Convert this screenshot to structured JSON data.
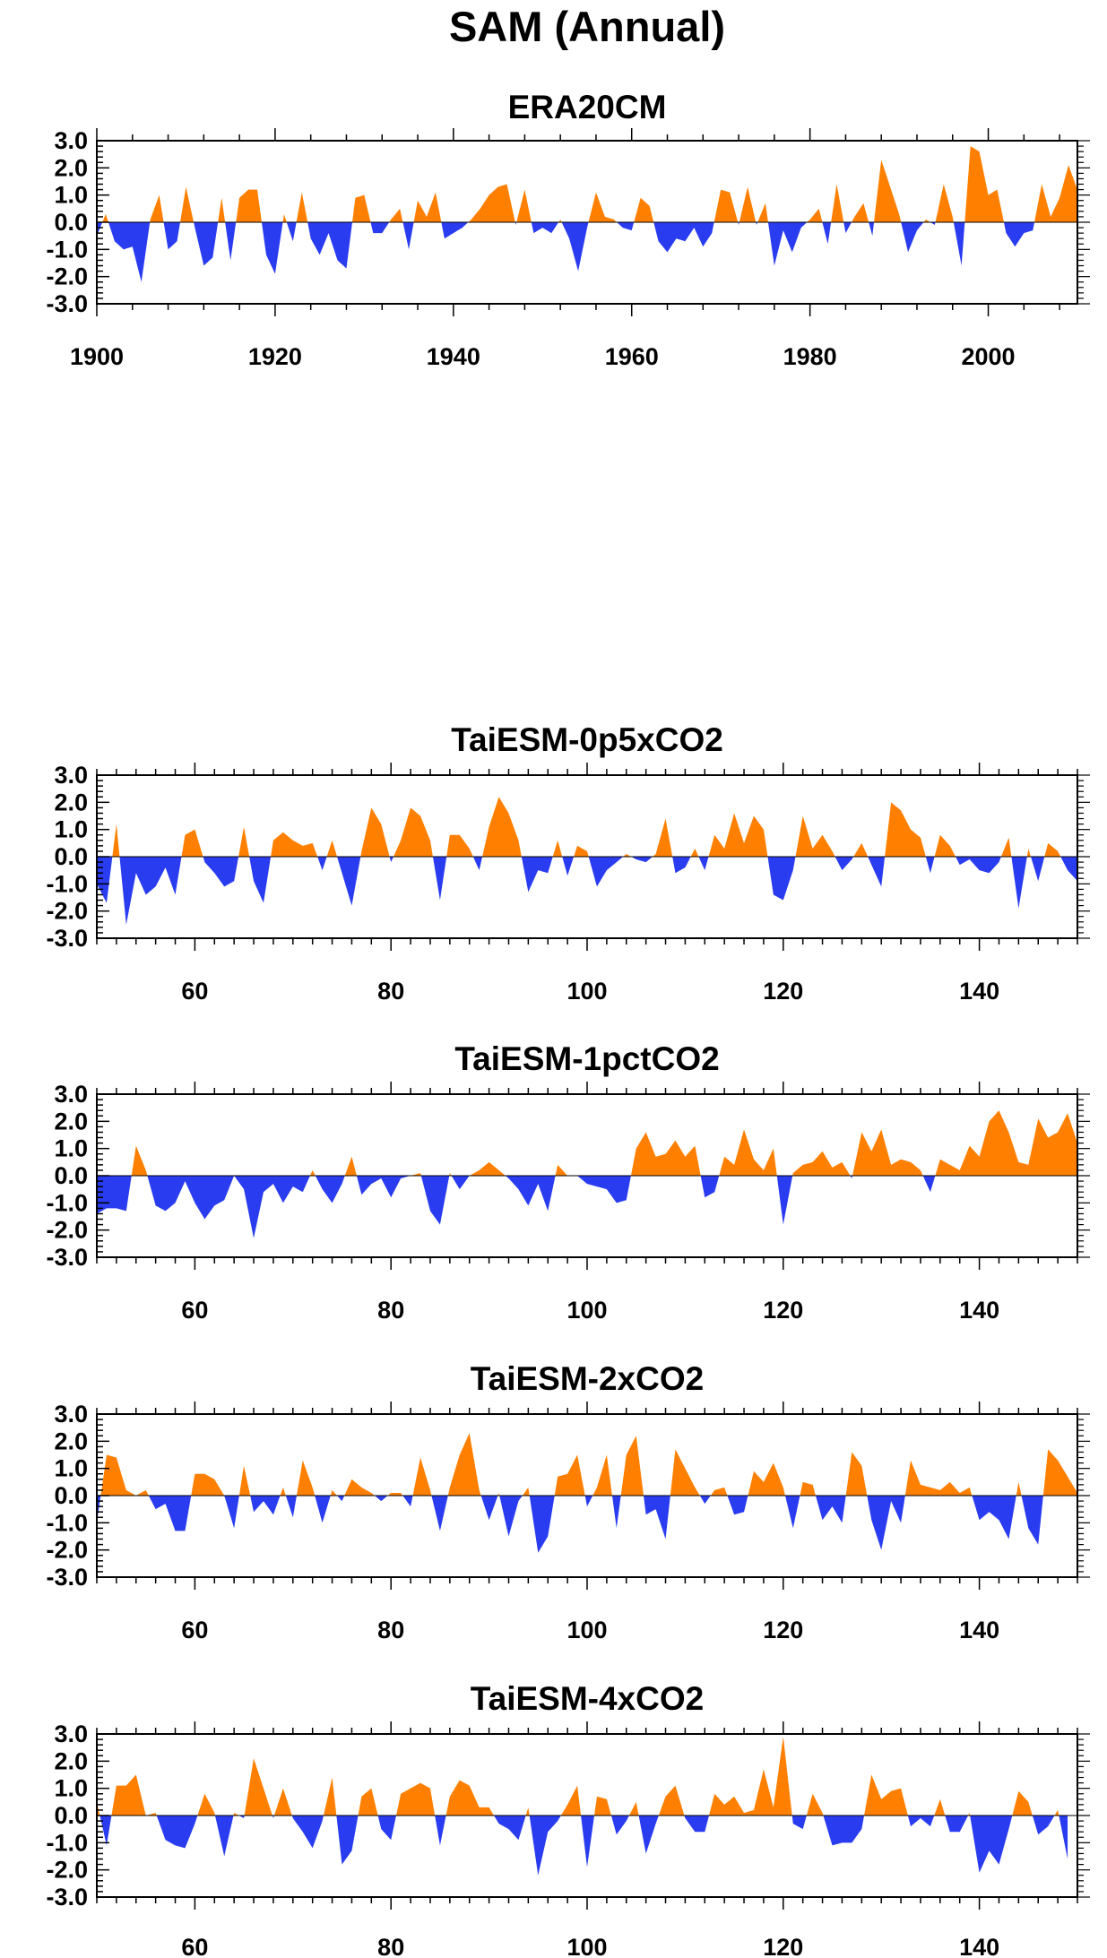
{
  "figure": {
    "title": "SAM (Annual)"
  },
  "colors": {
    "positive": "#ff8000",
    "negative": "#2a3cf0",
    "axis": "#000000"
  },
  "chart_data": [
    {
      "type": "area",
      "title": "ERA20CM",
      "xlabel": "",
      "ylabel": "",
      "xlim": [
        1900,
        2010
      ],
      "ylim": [
        -3,
        3
      ],
      "x_ticks": [
        1900,
        1920,
        1940,
        1960,
        1980,
        2000
      ],
      "x_tick_labels": [
        "1900",
        "1920",
        "1940",
        "1960",
        "1980",
        "2000"
      ],
      "y_ticks": [
        3,
        2,
        1,
        0,
        -1,
        -2,
        -3
      ],
      "y_tick_labels": [
        "3.0",
        "2.0",
        "1.0",
        "0.0",
        "-1.0",
        "-2.0",
        "-3.0"
      ],
      "grid": false,
      "x_start": 1900,
      "values": [
        -0.5,
        0.3,
        -0.7,
        -1.0,
        -0.9,
        -2.2,
        0.1,
        1.0,
        -1.0,
        -0.7,
        1.3,
        -0.2,
        -1.6,
        -1.3,
        0.9,
        -1.4,
        0.9,
        1.2,
        1.2,
        -1.2,
        -1.9,
        0.3,
        -0.7,
        1.1,
        -0.6,
        -1.2,
        -0.4,
        -1.4,
        -1.7,
        0.9,
        1.0,
        -0.4,
        -0.4,
        0.1,
        0.5,
        -1.0,
        0.8,
        0.2,
        1.1,
        -0.6,
        -0.4,
        -0.2,
        0.1,
        0.5,
        1.0,
        1.3,
        1.4,
        -0.1,
        1.2,
        -0.4,
        -0.2,
        -0.4,
        0.1,
        -0.6,
        -1.8,
        -0.2,
        1.1,
        0.2,
        0.1,
        -0.2,
        -0.3,
        0.9,
        0.6,
        -0.7,
        -1.1,
        -0.6,
        -0.7,
        -0.2,
        -0.9,
        -0.4,
        1.2,
        1.1,
        -0.1,
        1.3,
        -0.1,
        0.7,
        -1.6,
        -0.3,
        -1.1,
        -0.2,
        0.1,
        0.5,
        -0.8,
        1.4,
        -0.4,
        0.2,
        0.7,
        -0.5,
        2.3,
        1.3,
        0.3,
        -1.1,
        -0.3,
        0.1,
        -0.1,
        1.4,
        0.2,
        -1.6,
        2.8,
        2.6,
        1.0,
        1.2,
        -0.4,
        -0.9,
        -0.4,
        -0.3,
        1.4,
        0.2,
        0.9,
        2.1,
        1.2
      ]
    },
    {
      "type": "area",
      "title": "TaiESM-0p5xCO2",
      "xlabel": "",
      "ylabel": "",
      "xlim": [
        50,
        150
      ],
      "ylim": [
        -3,
        3
      ],
      "x_ticks": [
        60,
        80,
        100,
        120,
        140
      ],
      "x_tick_labels": [
        "60",
        "80",
        "100",
        "120",
        "140"
      ],
      "y_ticks": [
        3,
        2,
        1,
        0,
        -1,
        -2,
        -3
      ],
      "y_tick_labels": [
        "3.0",
        "2.0",
        "1.0",
        "0.0",
        "-1.0",
        "-2.0",
        "-3.0"
      ],
      "grid": false,
      "x_start": 50,
      "values": [
        -1.0,
        -1.7,
        1.2,
        -2.5,
        -0.6,
        -1.4,
        -1.1,
        -0.4,
        -1.4,
        0.8,
        1.0,
        -0.2,
        -0.6,
        -1.1,
        -0.9,
        1.1,
        -0.9,
        -1.7,
        0.6,
        0.9,
        0.6,
        0.4,
        0.5,
        -0.5,
        0.6,
        -0.6,
        -1.8,
        0.2,
        1.8,
        1.2,
        -0.2,
        0.6,
        1.8,
        1.5,
        0.6,
        -1.6,
        0.8,
        0.8,
        0.3,
        -0.5,
        1.1,
        2.2,
        1.6,
        0.6,
        -1.3,
        -0.5,
        -0.6,
        0.6,
        -0.7,
        0.4,
        0.2,
        -1.1,
        -0.5,
        -0.2,
        0.1,
        -0.1,
        -0.2,
        0.1,
        1.4,
        -0.6,
        -0.4,
        0.3,
        -0.5,
        0.8,
        0.3,
        1.6,
        0.5,
        1.5,
        1.0,
        -1.4,
        -1.6,
        -0.5,
        1.5,
        0.3,
        0.8,
        0.2,
        -0.5,
        -0.1,
        0.5,
        -0.3,
        -1.1,
        2.0,
        1.7,
        1.0,
        0.7,
        -0.6,
        0.8,
        0.4,
        -0.3,
        -0.1,
        -0.5,
        -0.6,
        -0.2,
        0.7,
        -1.9,
        0.3,
        -0.9,
        0.5,
        0.2,
        -0.5,
        -0.9
      ]
    },
    {
      "type": "area",
      "title": "TaiESM-1pctCO2",
      "xlabel": "",
      "ylabel": "",
      "xlim": [
        50,
        150
      ],
      "ylim": [
        -3,
        3
      ],
      "x_ticks": [
        60,
        80,
        100,
        120,
        140
      ],
      "x_tick_labels": [
        "60",
        "80",
        "100",
        "120",
        "140"
      ],
      "y_ticks": [
        3,
        2,
        1,
        0,
        -1,
        -2,
        -3
      ],
      "y_tick_labels": [
        "3.0",
        "2.0",
        "1.0",
        "0.0",
        "-1.0",
        "-2.0",
        "-3.0"
      ],
      "grid": false,
      "x_start": 50,
      "values": [
        -1.4,
        -1.2,
        -1.2,
        -1.3,
        1.1,
        0.2,
        -1.1,
        -1.3,
        -1.0,
        -0.2,
        -1.0,
        -1.6,
        -1.1,
        -0.9,
        0.0,
        -0.5,
        -2.3,
        -0.6,
        -0.3,
        -1.0,
        -0.4,
        -0.6,
        0.2,
        -0.5,
        -1.0,
        -0.3,
        0.7,
        -0.7,
        -0.3,
        -0.1,
        -0.8,
        -0.1,
        0.0,
        0.1,
        -1.3,
        -1.8,
        0.1,
        -0.5,
        0.0,
        0.2,
        0.5,
        0.2,
        -0.1,
        -0.5,
        -1.1,
        -0.3,
        -1.3,
        0.4,
        0.0,
        0.0,
        -0.3,
        -0.4,
        -0.5,
        -1.0,
        -0.9,
        1.0,
        1.6,
        0.7,
        0.8,
        1.3,
        0.7,
        1.1,
        -0.8,
        -0.6,
        0.7,
        0.4,
        1.7,
        0.6,
        0.2,
        1.0,
        -1.8,
        0.1,
        0.4,
        0.5,
        0.9,
        0.3,
        0.5,
        -0.1,
        1.6,
        0.9,
        1.7,
        0.4,
        0.6,
        0.5,
        0.2,
        -0.6,
        0.6,
        0.4,
        0.2,
        1.1,
        0.7,
        2.0,
        2.4,
        1.6,
        0.5,
        0.4,
        2.1,
        1.4,
        1.6,
        2.3,
        1.2
      ]
    },
    {
      "type": "area",
      "title": "TaiESM-2xCO2",
      "xlabel": "",
      "ylabel": "",
      "xlim": [
        50,
        150
      ],
      "ylim": [
        -3,
        3
      ],
      "x_ticks": [
        60,
        80,
        100,
        120,
        140
      ],
      "x_tick_labels": [
        "60",
        "80",
        "100",
        "120",
        "140"
      ],
      "y_ticks": [
        3,
        2,
        1,
        0,
        -1,
        -2,
        -3
      ],
      "y_tick_labels": [
        "3.0",
        "2.0",
        "1.0",
        "0.0",
        "-1.0",
        "-2.0",
        "-3.0"
      ],
      "grid": false,
      "x_start": 50,
      "values": [
        -1.0,
        1.5,
        1.4,
        0.2,
        0.0,
        0.2,
        -0.5,
        -0.3,
        -1.3,
        -1.3,
        0.8,
        0.8,
        0.6,
        0.0,
        -1.2,
        1.1,
        -0.6,
        -0.2,
        -0.7,
        0.3,
        -0.8,
        1.3,
        0.3,
        -1.0,
        0.2,
        -0.2,
        0.6,
        0.3,
        0.1,
        -0.2,
        0.1,
        0.1,
        -0.4,
        1.4,
        0.2,
        -1.3,
        0.3,
        1.5,
        2.3,
        0.2,
        -0.9,
        0.1,
        -1.5,
        -0.2,
        0.3,
        -2.1,
        -1.5,
        0.7,
        0.8,
        1.5,
        -0.4,
        0.3,
        1.5,
        -1.2,
        1.5,
        2.2,
        -0.7,
        -0.5,
        -1.6,
        1.7,
        1.0,
        0.3,
        -0.3,
        0.2,
        0.3,
        -0.7,
        -0.6,
        0.9,
        0.5,
        1.2,
        0.3,
        -1.2,
        0.5,
        0.4,
        -0.9,
        -0.4,
        -1.0,
        1.6,
        1.1,
        -0.9,
        -2.0,
        -0.2,
        -1.0,
        1.3,
        0.4,
        0.3,
        0.2,
        0.5,
        0.1,
        0.3,
        -0.9,
        -0.6,
        -0.9,
        -1.6,
        0.5,
        -1.2,
        -1.8,
        1.7,
        1.3,
        0.7,
        0.1
      ]
    },
    {
      "type": "area",
      "title": "TaiESM-4xCO2",
      "xlabel": "",
      "ylabel": "",
      "xlim": [
        50,
        150
      ],
      "ylim": [
        -3,
        3
      ],
      "x_ticks": [
        60,
        80,
        100,
        120,
        140
      ],
      "x_tick_labels": [
        "60",
        "80",
        "100",
        "120",
        "140"
      ],
      "y_ticks": [
        3,
        2,
        1,
        0,
        -1,
        -2,
        -3
      ],
      "y_tick_labels": [
        "3.0",
        "2.0",
        "1.0",
        "0.0",
        "-1.0",
        "-2.0",
        "-3.0"
      ],
      "grid": false,
      "x_start": 50,
      "values": [
        0.5,
        -1.1,
        1.1,
        1.1,
        1.5,
        0.0,
        0.1,
        -0.9,
        -1.1,
        -1.2,
        -0.3,
        0.8,
        0.1,
        -1.5,
        0.1,
        -0.1,
        2.1,
        1.0,
        -0.1,
        1.0,
        -0.1,
        -0.6,
        -1.2,
        -0.2,
        1.4,
        -1.8,
        -1.3,
        0.7,
        1.0,
        -0.5,
        -0.9,
        0.8,
        1.0,
        1.2,
        1.0,
        -1.1,
        0.7,
        1.3,
        1.1,
        0.3,
        0.3,
        -0.3,
        -0.5,
        -0.9,
        0.3,
        -2.2,
        -0.6,
        -0.2,
        0.4,
        1.1,
        -1.9,
        0.7,
        0.6,
        -0.7,
        -0.2,
        0.5,
        -1.4,
        -0.3,
        0.7,
        1.1,
        -0.1,
        -0.6,
        -0.6,
        0.8,
        0.4,
        0.7,
        0.1,
        0.2,
        1.7,
        0.3,
        2.9,
        -0.3,
        -0.5,
        0.8,
        0.1,
        -1.1,
        -1.0,
        -1.0,
        -0.5,
        1.5,
        0.6,
        0.9,
        1.0,
        -0.4,
        -0.1,
        -0.4,
        0.6,
        -0.6,
        -0.6,
        0.1,
        -2.1,
        -1.3,
        -1.8,
        -0.5,
        0.9,
        0.5,
        -0.7,
        -0.4,
        0.2,
        -1.6
      ]
    }
  ]
}
